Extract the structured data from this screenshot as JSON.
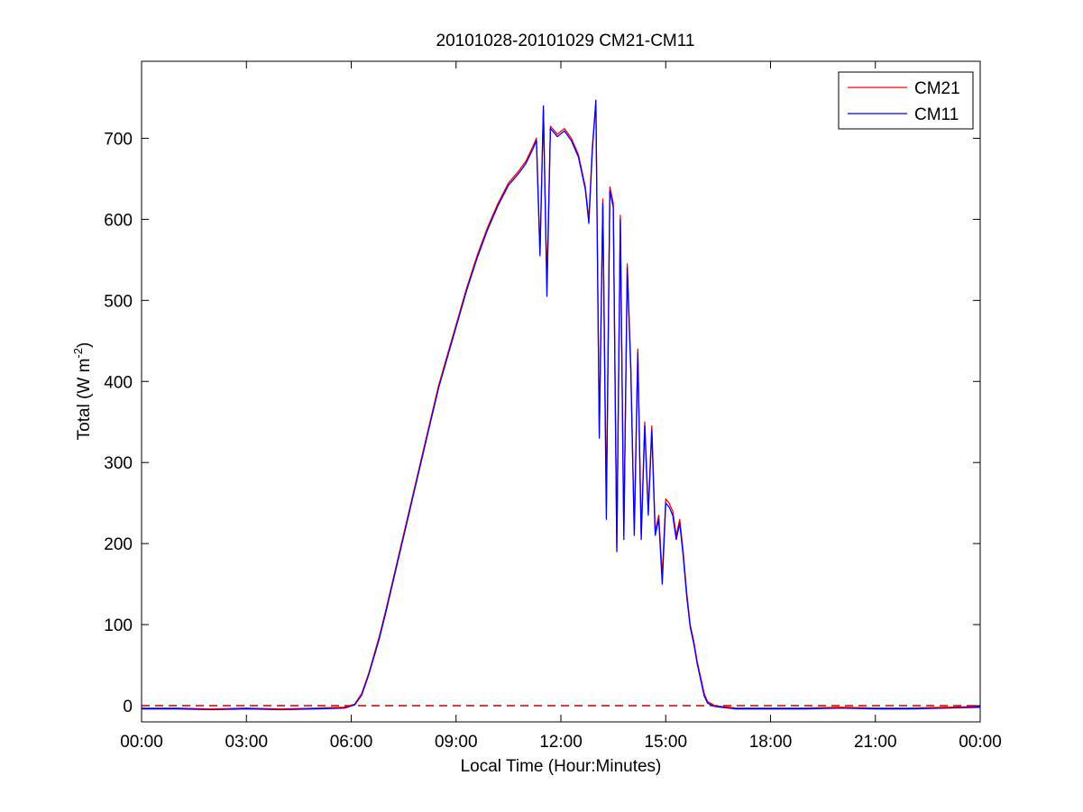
{
  "chart_data": {
    "type": "line",
    "title": "20101028-20101029 CM21-CM11",
    "xlabel": "Local Time (Hour:Minutes)",
    "ylabel": "Total (W m",
    "ylabel_sup": "-2",
    "ylabel_close": ")",
    "xlim": [
      0,
      24
    ],
    "ylim": [
      -20,
      795
    ],
    "xticks": [
      0,
      3,
      6,
      9,
      12,
      15,
      18,
      21,
      24
    ],
    "xtick_labels": [
      "00:00",
      "03:00",
      "06:00",
      "09:00",
      "12:00",
      "15:00",
      "18:00",
      "21:00",
      "00:00"
    ],
    "yticks": [
      0,
      100,
      200,
      300,
      400,
      500,
      600,
      700
    ],
    "ytick_labels": [
      "0",
      "100",
      "200",
      "300",
      "400",
      "500",
      "600",
      "700"
    ],
    "grid": false,
    "legend_position": "top-right",
    "reference_line": {
      "y": 0,
      "color": "#c00000",
      "style": "dashed"
    },
    "series": [
      {
        "name": "CM21",
        "color": "#ff0000",
        "x": [
          0,
          1,
          2,
          3,
          4,
          5,
          5.8,
          6.1,
          6.3,
          6.5,
          6.8,
          7.0,
          7.3,
          7.6,
          7.9,
          8.2,
          8.5,
          8.8,
          9.0,
          9.3,
          9.6,
          9.9,
          10.2,
          10.5,
          10.8,
          11.0,
          11.2,
          11.3,
          11.4,
          11.5,
          11.6,
          11.7,
          11.9,
          12.1,
          12.3,
          12.5,
          12.7,
          12.8,
          12.9,
          13.0,
          13.1,
          13.2,
          13.3,
          13.4,
          13.5,
          13.6,
          13.7,
          13.8,
          13.9,
          14.0,
          14.1,
          14.2,
          14.3,
          14.4,
          14.5,
          14.6,
          14.7,
          14.8,
          14.9,
          15.0,
          15.1,
          15.2,
          15.3,
          15.4,
          15.5,
          15.6,
          15.7,
          15.8,
          15.9,
          16.0,
          16.1,
          16.2,
          16.4,
          16.6,
          16.8,
          17.0,
          17.3,
          17.6,
          18.0,
          19.0,
          20.0,
          21.0,
          22.0,
          23.0,
          24.0
        ],
        "y": [
          -3,
          -3,
          -4,
          -3,
          -4,
          -3,
          -2,
          2,
          15,
          40,
          85,
          120,
          175,
          230,
          285,
          340,
          395,
          440,
          470,
          515,
          555,
          590,
          620,
          645,
          660,
          672,
          690,
          700,
          560,
          735,
          520,
          715,
          705,
          712,
          700,
          680,
          640,
          600,
          690,
          745,
          335,
          625,
          250,
          640,
          620,
          195,
          605,
          210,
          545,
          420,
          215,
          440,
          210,
          350,
          240,
          345,
          215,
          235,
          160,
          255,
          250,
          240,
          210,
          230,
          190,
          140,
          100,
          80,
          55,
          35,
          15,
          5,
          0,
          -1,
          -2,
          -3,
          -3,
          -3,
          -3,
          -3,
          -2,
          -3,
          -3,
          -2,
          -1
        ]
      },
      {
        "name": "CM11",
        "color": "#0000ff",
        "x": [
          0,
          1,
          2,
          3,
          4,
          5,
          5.8,
          6.1,
          6.3,
          6.5,
          6.8,
          7.0,
          7.3,
          7.6,
          7.9,
          8.2,
          8.5,
          8.8,
          9.0,
          9.3,
          9.6,
          9.9,
          10.2,
          10.5,
          10.8,
          11.0,
          11.2,
          11.3,
          11.4,
          11.5,
          11.6,
          11.7,
          11.9,
          12.1,
          12.3,
          12.5,
          12.7,
          12.8,
          12.9,
          13.0,
          13.1,
          13.2,
          13.3,
          13.4,
          13.5,
          13.6,
          13.7,
          13.8,
          13.9,
          14.0,
          14.1,
          14.2,
          14.3,
          14.4,
          14.5,
          14.6,
          14.7,
          14.8,
          14.9,
          15.0,
          15.1,
          15.2,
          15.3,
          15.4,
          15.5,
          15.6,
          15.7,
          15.8,
          15.9,
          16.0,
          16.1,
          16.2,
          16.4,
          16.6,
          16.8,
          17.0,
          17.3,
          17.6,
          18.0,
          19.0,
          20.0,
          21.0,
          22.0,
          23.0,
          24.0
        ],
        "y": [
          -4,
          -4,
          -5,
          -4,
          -5,
          -4,
          -3,
          1,
          13,
          38,
          82,
          117,
          172,
          227,
          282,
          337,
          392,
          437,
          467,
          512,
          552,
          587,
          617,
          642,
          657,
          669,
          687,
          697,
          555,
          740,
          505,
          712,
          702,
          709,
          697,
          677,
          637,
          595,
          685,
          747,
          330,
          620,
          230,
          635,
          615,
          190,
          600,
          205,
          540,
          415,
          210,
          435,
          205,
          345,
          235,
          340,
          210,
          230,
          150,
          250,
          245,
          235,
          205,
          225,
          185,
          135,
          97,
          77,
          52,
          32,
          12,
          3,
          -1,
          -2,
          -3,
          -4,
          -4,
          -4,
          -4,
          -4,
          -3,
          -4,
          -4,
          -3,
          -2
        ]
      }
    ]
  }
}
